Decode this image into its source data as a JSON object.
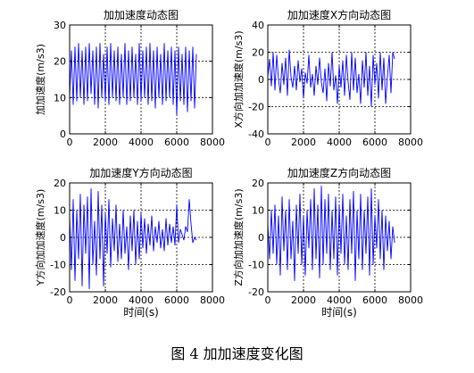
{
  "caption": "图 4  加加速度变化图",
  "chart_data": [
    {
      "type": "line",
      "title": "加加速度动态图",
      "xlabel": "",
      "ylabel": "加加速度(m/s3)",
      "xlim": [
        0,
        8000
      ],
      "ylim": [
        0,
        30
      ],
      "xticks": [
        "0",
        "2000",
        "4000",
        "6000",
        "8000"
      ],
      "yticks": [
        "0",
        "10",
        "20",
        "30"
      ],
      "grid": "dotted",
      "color": "#0000ff",
      "series": [
        {
          "x": [
            0,
            100,
            200,
            300,
            400,
            500,
            600,
            700,
            800,
            900,
            1000,
            1100,
            1200,
            1300,
            1400,
            1500,
            1600,
            1700,
            1800,
            1900,
            2000,
            2100,
            2200,
            2300,
            2400,
            2500,
            2600,
            2700,
            2800,
            2900,
            3000,
            3100,
            3200,
            3300,
            3400,
            3500,
            3600,
            3700,
            3800,
            3900,
            4000,
            4100,
            4200,
            4300,
            4400,
            4500,
            4600,
            4700,
            4800,
            4900,
            5000,
            5100,
            5200,
            5300,
            5400,
            5500,
            5600,
            5700,
            5800,
            5900,
            6000,
            6100,
            6200,
            6300,
            6400,
            6500,
            6600,
            6700,
            6800,
            6900,
            7000,
            7100
          ],
          "y": [
            10,
            23,
            8,
            24,
            9,
            25,
            10,
            23,
            8,
            24,
            9,
            25,
            11,
            23,
            8,
            24,
            7,
            25,
            10,
            22,
            9,
            24,
            8,
            25,
            10,
            23,
            9,
            24,
            8,
            22,
            10,
            25,
            8,
            23,
            9,
            24,
            10,
            22,
            8,
            25,
            9,
            23,
            10,
            24,
            8,
            25,
            9,
            23,
            7,
            24,
            10,
            22,
            8,
            25,
            9,
            23,
            10,
            24,
            8,
            23,
            5,
            24,
            9,
            22,
            8,
            24,
            6,
            23,
            9,
            24,
            7,
            22
          ]
        }
      ]
    },
    {
      "type": "line",
      "title": "加加速度X方向动态图",
      "xlabel": "",
      "ylabel": "X方向加加速度(m/s3)",
      "xlim": [
        0,
        8000
      ],
      "ylim": [
        -40,
        40
      ],
      "xticks": [
        "0",
        "2000",
        "4000",
        "6000",
        "8000"
      ],
      "yticks": [
        "-40",
        "-20",
        "0",
        "20",
        "40"
      ],
      "grid": "dotted",
      "color": "#0000ff",
      "series": [
        {
          "x": [
            0,
            100,
            200,
            300,
            400,
            500,
            600,
            700,
            800,
            900,
            1000,
            1100,
            1200,
            1300,
            1400,
            1500,
            1600,
            1700,
            1800,
            1900,
            2000,
            2100,
            2200,
            2300,
            2400,
            2500,
            2600,
            2700,
            2800,
            2900,
            3000,
            3100,
            3200,
            3300,
            3400,
            3500,
            3600,
            3700,
            3800,
            3900,
            4000,
            4100,
            4200,
            4300,
            4400,
            4500,
            4600,
            4700,
            4800,
            4900,
            5000,
            5100,
            5200,
            5300,
            5400,
            5500,
            5600,
            5700,
            5800,
            5900,
            6000,
            6100,
            6200,
            6300,
            6400,
            6500,
            6600,
            6700,
            6800,
            6900,
            7000,
            7100
          ],
          "y": [
            2,
            15,
            -5,
            20,
            -8,
            18,
            0,
            -10,
            12,
            -4,
            16,
            -12,
            22,
            2,
            -6,
            10,
            -8,
            14,
            -2,
            8,
            -14,
            5,
            -3,
            18,
            -6,
            4,
            -12,
            10,
            -4,
            16,
            -2,
            -10,
            8,
            -16,
            12,
            -5,
            20,
            -8,
            3,
            -18,
            10,
            -6,
            14,
            -12,
            18,
            -2,
            -15,
            20,
            -8,
            16,
            -10,
            4,
            -18,
            14,
            -6,
            20,
            -12,
            10,
            -20,
            18,
            -4,
            12,
            -14,
            20,
            -8,
            16,
            -18,
            2,
            18,
            -10,
            20,
            15
          ]
        }
      ]
    },
    {
      "type": "line",
      "title": "加加速度Y方向动态图",
      "xlabel": "时间(s)",
      "ylabel": "Y方向加加速度(m/s3)",
      "xlim": [
        0,
        8000
      ],
      "ylim": [
        -20,
        20
      ],
      "xticks": [
        "0",
        "2000",
        "4000",
        "6000",
        "8000"
      ],
      "yticks": [
        "-20",
        "-10",
        "0",
        "10",
        "20"
      ],
      "grid": "dotted",
      "color": "#0000ff",
      "series": [
        {
          "x": [
            0,
            100,
            200,
            300,
            400,
            500,
            600,
            700,
            800,
            900,
            1000,
            1100,
            1200,
            1300,
            1400,
            1500,
            1600,
            1700,
            1800,
            1900,
            2000,
            2100,
            2200,
            2300,
            2400,
            2500,
            2600,
            2700,
            2800,
            2900,
            3000,
            3100,
            3200,
            3300,
            3400,
            3500,
            3600,
            3700,
            3800,
            3900,
            4000,
            4100,
            4200,
            4300,
            4400,
            4500,
            4600,
            4700,
            4800,
            4900,
            5000,
            5100,
            5200,
            5300,
            5400,
            5500,
            5600,
            5700,
            5800,
            5900,
            6000,
            6100,
            6200,
            6300,
            6400,
            6500,
            6600,
            6700,
            6800,
            6900,
            7000,
            7100
          ],
          "y": [
            8,
            -12,
            14,
            -16,
            10,
            -8,
            16,
            -18,
            12,
            -6,
            15,
            -19,
            18,
            -10,
            6,
            -14,
            17,
            -8,
            12,
            -18,
            9,
            -6,
            14,
            -11,
            7,
            -5,
            12,
            -9,
            5,
            -8,
            10,
            -6,
            4,
            -12,
            8,
            -5,
            10,
            -10,
            6,
            -8,
            9,
            -4,
            7,
            -6,
            5,
            -3,
            8,
            -5,
            4,
            -2,
            6,
            -4,
            3,
            -5,
            7,
            -3,
            5,
            -2,
            4,
            -3,
            12,
            -2,
            3,
            1,
            -1,
            4,
            2,
            14,
            5,
            -2,
            0,
            -1
          ]
        }
      ]
    },
    {
      "type": "line",
      "title": "加加速度Z方向动态图",
      "xlabel": "时间(s)",
      "ylabel": "Z方向加加速度(m/s3)",
      "xlim": [
        0,
        8000
      ],
      "ylim": [
        -20,
        20
      ],
      "xticks": [
        "0",
        "2000",
        "4000",
        "6000",
        "8000"
      ],
      "yticks": [
        "-20",
        "-10",
        "0",
        "10",
        "20"
      ],
      "grid": "dotted",
      "color": "#0000ff",
      "series": [
        {
          "x": [
            0,
            100,
            200,
            300,
            400,
            500,
            600,
            700,
            800,
            900,
            1000,
            1100,
            1200,
            1300,
            1400,
            1500,
            1600,
            1700,
            1800,
            1900,
            2000,
            2100,
            2200,
            2300,
            2400,
            2500,
            2600,
            2700,
            2800,
            2900,
            3000,
            3100,
            3200,
            3300,
            3400,
            3500,
            3600,
            3700,
            3800,
            3900,
            4000,
            4100,
            4200,
            4300,
            4400,
            4500,
            4600,
            4700,
            4800,
            4900,
            5000,
            5100,
            5200,
            5300,
            5400,
            5500,
            5600,
            5700,
            5800,
            5900,
            6000,
            6100,
            6200,
            6300,
            6400,
            6500,
            6600,
            6700,
            6800,
            6900,
            7000,
            7100
          ],
          "y": [
            5,
            -8,
            10,
            -6,
            12,
            -10,
            8,
            -14,
            15,
            -5,
            10,
            -12,
            14,
            -8,
            6,
            -16,
            12,
            -6,
            16,
            -10,
            8,
            -14,
            10,
            -4,
            14,
            -12,
            18,
            -8,
            12,
            -15,
            19,
            -10,
            14,
            -6,
            16,
            -12,
            10,
            -8,
            15,
            -14,
            12,
            -6,
            16,
            -10,
            8,
            -12,
            14,
            -6,
            17,
            -16,
            10,
            -8,
            16,
            -12,
            10,
            -6,
            15,
            -14,
            18,
            -10,
            8,
            -4,
            14,
            -8,
            10,
            -12,
            8,
            -5,
            6,
            -8,
            4,
            -2
          ]
        }
      ]
    }
  ]
}
